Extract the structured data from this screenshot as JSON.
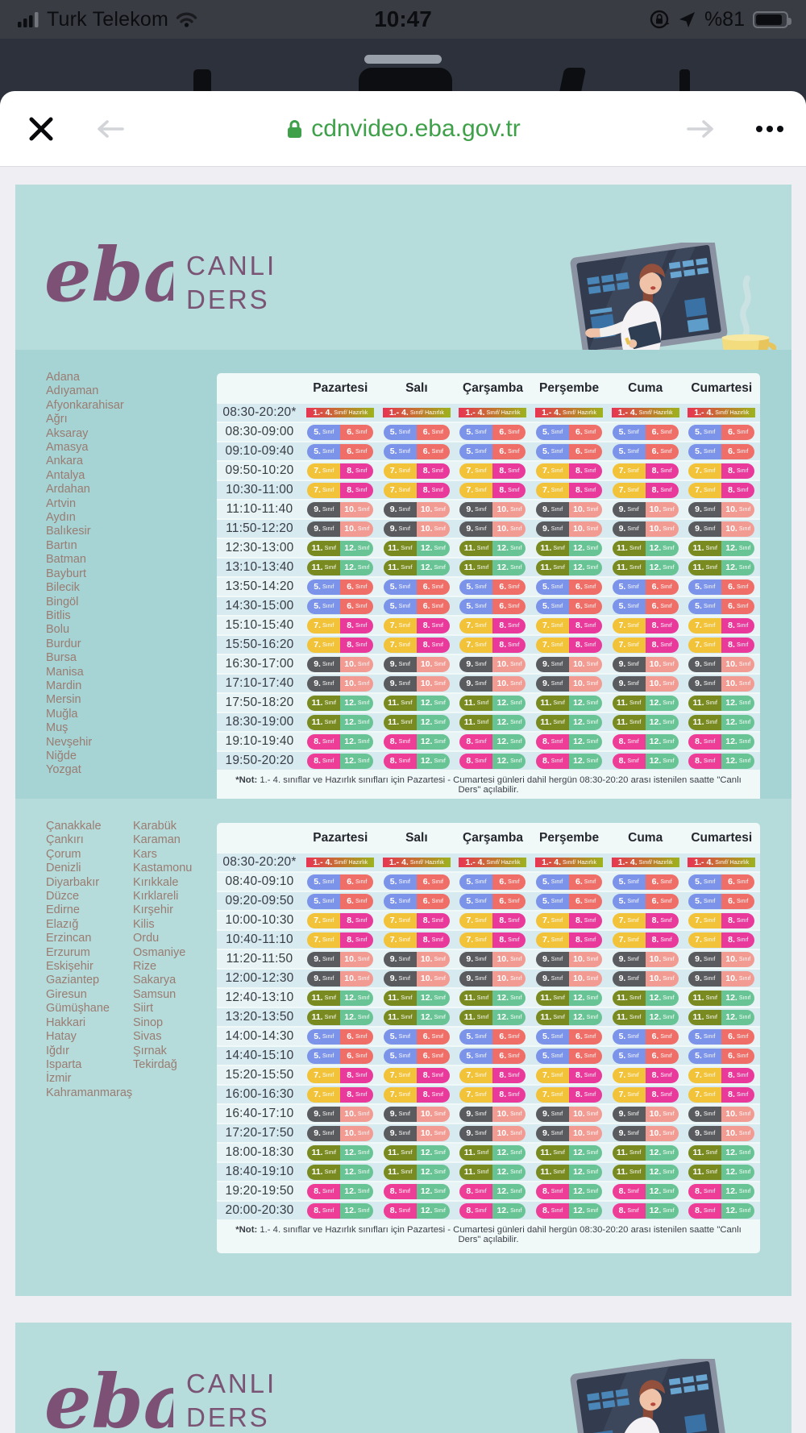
{
  "status_bar": {
    "carrier": "Turk Telekom",
    "time": "10:47",
    "battery_percent": "%81",
    "icons": [
      "signal-bars-icon",
      "wifi-icon",
      "orientation-lock-icon",
      "location-arrow-icon",
      "battery-icon"
    ]
  },
  "browser": {
    "url": "cdnvideo.eba.gov.tr",
    "icons": [
      "close-icon",
      "back-arrow-icon",
      "ssl-lock-icon",
      "forward-arrow-icon",
      "more-options-icon"
    ]
  },
  "brand": {
    "logo_text": "eba",
    "title_line1": "CANLI",
    "title_line2": "DERS"
  },
  "footer_panel": {
    "logo_text": "eba",
    "title_line1": "CANLI",
    "title_line2": "DERS"
  },
  "colors": {
    "url_green": "#3fa04a",
    "teal_header": "#b6dcdb",
    "teal_strip1": "#a6d3d4",
    "teal_strip2": "#b5dbda",
    "logo_purple": "#7c5175",
    "city_text": "#9a7c72",
    "row_odd": "#d7eaf0",
    "row_even": "#e7f3f5"
  },
  "days": [
    "Pazartesi",
    "Salı",
    "Çarşamba",
    "Perşembe",
    "Cuma",
    "Cumartesi"
  ],
  "badges": {
    "hazirlik": {
      "type": "gradient",
      "num": "1.- 4.",
      "label": "Sınıf/ Hazırlık",
      "color_from": "#e93352",
      "color_mid": "#bf7a2e",
      "color_to": "#9cb41c"
    },
    "5-6": {
      "type": "pair",
      "left": {
        "num": "5.",
        "label": "Sınıf",
        "color": "#7b93e8"
      },
      "right": {
        "num": "6.",
        "label": "Sınıf",
        "color": "#ef6f68"
      }
    },
    "7-8": {
      "type": "pair",
      "left": {
        "num": "7.",
        "label": "Sınıf",
        "color": "#f2c238"
      },
      "right": {
        "num": "8.",
        "label": "Sınıf",
        "color": "#e93a9c"
      }
    },
    "9-10": {
      "type": "pair",
      "left": {
        "num": "9.",
        "label": "Sınıf",
        "color": "#5a5b5e"
      },
      "right": {
        "num": "10.",
        "label": "Sınıf",
        "color": "#f29b93"
      }
    },
    "11-12": {
      "type": "pair",
      "left": {
        "num": "11.",
        "label": "Sınıf",
        "color": "#798a20"
      },
      "right": {
        "num": "12.",
        "label": "Sınıf",
        "color": "#69c495"
      }
    },
    "8-12": {
      "type": "pair",
      "left": {
        "num": "8.",
        "label": "Sınıf",
        "color": "#ed3d97"
      },
      "right": {
        "num": "12.",
        "label": "Sınıf",
        "color": "#69c495"
      }
    }
  },
  "sections": [
    {
      "cities": [
        [
          "Adana",
          "Adıyaman",
          "Afyonkarahisar",
          "Ağrı",
          "Aksaray",
          "Amasya",
          "Ankara",
          "Antalya",
          "Ardahan",
          "Artvin",
          "Aydın",
          "Balıkesir",
          "Bartın",
          "Batman",
          "Bayburt",
          "Bilecik",
          "Bingöl",
          "Bitlis",
          "Bolu",
          "Burdur",
          "Bursa",
          "Manisa",
          "Mardin",
          "Mersin",
          "Muğla",
          "Muş",
          "Nevşehir",
          "Niğde",
          "Yozgat"
        ]
      ],
      "rows": [
        [
          "08:30-20:20*",
          "hazirlik"
        ],
        [
          "08:30-09:00",
          "5-6"
        ],
        [
          "09:10-09:40",
          "5-6"
        ],
        [
          "09:50-10:20",
          "7-8"
        ],
        [
          "10:30-11:00",
          "7-8"
        ],
        [
          "11:10-11:40",
          "9-10"
        ],
        [
          "11:50-12:20",
          "9-10"
        ],
        [
          "12:30-13:00",
          "11-12"
        ],
        [
          "13:10-13:40",
          "11-12"
        ],
        [
          "13:50-14:20",
          "5-6"
        ],
        [
          "14:30-15:00",
          "5-6"
        ],
        [
          "15:10-15:40",
          "7-8"
        ],
        [
          "15:50-16:20",
          "7-8"
        ],
        [
          "16:30-17:00",
          "9-10"
        ],
        [
          "17:10-17:40",
          "9-10"
        ],
        [
          "17:50-18:20",
          "11-12"
        ],
        [
          "18:30-19:00",
          "11-12"
        ],
        [
          "19:10-19:40",
          "8-12"
        ],
        [
          "19:50-20:20",
          "8-12"
        ]
      ],
      "note": {
        "bold": "*Not:",
        "text": "1.- 4. sınıflar ve Hazırlık sınıfları için Pazartesi - Cumartesi günleri dahil hergün 08:30-20:20 arası istenilen saatte \"Canlı Ders\" açılabilir."
      }
    },
    {
      "cities": [
        [
          "Çanakkale",
          "Çankırı",
          "Çorum",
          "Denizli",
          "Diyarbakır",
          "Düzce",
          "Edirne",
          "Elazığ",
          "Erzincan",
          "Erzurum",
          "Eskişehir",
          "Gaziantep",
          "Giresun",
          "Gümüşhane",
          "Hakkari",
          "Hatay",
          "Iğdır",
          "Isparta",
          "İzmir",
          "Kahramanmaraş"
        ],
        [
          "Karabük",
          "Karaman",
          "Kars",
          "Kastamonu",
          "Kırıkkale",
          "Kırklareli",
          "Kırşehir",
          "Kilis",
          "Ordu",
          "Osmaniye",
          "Rize",
          "Sakarya",
          "Samsun",
          "Siirt",
          "Sinop",
          "Sivas",
          "Şırnak",
          "Tekirdağ"
        ]
      ],
      "rows": [
        [
          "08:30-20:20*",
          "hazirlik"
        ],
        [
          "08:40-09:10",
          "5-6"
        ],
        [
          "09:20-09:50",
          "5-6"
        ],
        [
          "10:00-10:30",
          "7-8"
        ],
        [
          "10:40-11:10",
          "7-8"
        ],
        [
          "11:20-11:50",
          "9-10"
        ],
        [
          "12:00-12:30",
          "9-10"
        ],
        [
          "12:40-13:10",
          "11-12"
        ],
        [
          "13:20-13:50",
          "11-12"
        ],
        [
          "14:00-14:30",
          "5-6"
        ],
        [
          "14:40-15:10",
          "5-6"
        ],
        [
          "15:20-15:50",
          "7-8"
        ],
        [
          "16:00-16:30",
          "7-8"
        ],
        [
          "16:40-17:10",
          "9-10"
        ],
        [
          "17:20-17:50",
          "9-10"
        ],
        [
          "18:00-18:30",
          "11-12"
        ],
        [
          "18:40-19:10",
          "11-12"
        ],
        [
          "19:20-19:50",
          "8-12"
        ],
        [
          "20:00-20:30",
          "8-12"
        ]
      ],
      "note": {
        "bold": "*Not:",
        "text": "1.- 4. sınıflar ve Hazırlık sınıfları için Pazartesi - Cumartesi günleri dahil hergün 08:30-20:20 arası istenilen saatte \"Canlı Ders\" açılabilir."
      }
    }
  ]
}
